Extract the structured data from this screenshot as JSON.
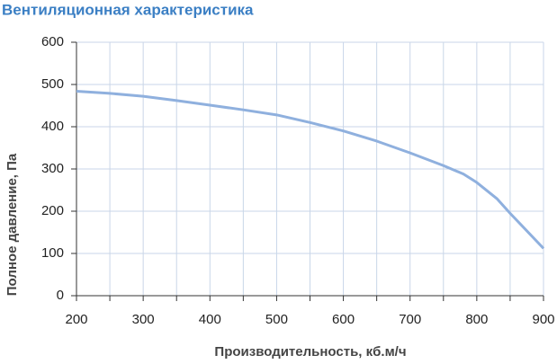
{
  "chart_data": {
    "type": "line",
    "title": "Вентиляционная характеристика",
    "x_label": "Производительность, кб.м/ч",
    "y_label": "Полное давление, Па",
    "series": [
      {
        "color": "#8fb0de",
        "x": [
          200,
          250,
          300,
          350,
          400,
          450,
          500,
          550,
          600,
          650,
          700,
          750,
          780,
          800,
          830,
          850,
          900
        ],
        "values": [
          484,
          479,
          472,
          462,
          451,
          440,
          428,
          410,
          390,
          366,
          338,
          308,
          288,
          268,
          230,
          195,
          112
        ]
      }
    ],
    "xlim": [
      200,
      900
    ],
    "xticks": [
      200,
      300,
      400,
      500,
      600,
      700,
      800,
      900
    ],
    "xminor": [
      250,
      350,
      450,
      550,
      650,
      750,
      850
    ],
    "ylim": [
      0,
      600
    ],
    "yticks": [
      0,
      100,
      200,
      300,
      400,
      500,
      600
    ],
    "grid": true
  }
}
